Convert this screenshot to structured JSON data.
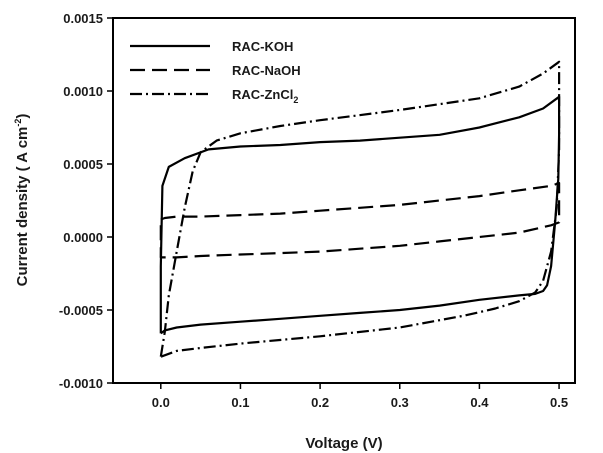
{
  "chart_data": {
    "type": "line",
    "xlabel": "Voltage (V)",
    "ylabel_prefix": "Current density ( A cm",
    "ylabel_sup": "-2",
    "ylabel_suffix": ")",
    "xlim": [
      -0.06,
      0.52
    ],
    "ylim": [
      -0.001,
      0.0015
    ],
    "x_ticks": [
      0.0,
      0.1,
      0.2,
      0.3,
      0.4,
      0.5
    ],
    "x_tick_labels": [
      "0.0",
      "0.1",
      "0.2",
      "0.3",
      "0.4",
      "0.5"
    ],
    "y_ticks": [
      -0.001,
      -0.0005,
      0.0,
      0.0005,
      0.001,
      0.0015
    ],
    "y_tick_labels": [
      "-0.0010",
      "-0.0005",
      "0.0000",
      "0.0005",
      "0.0010",
      "0.0015"
    ],
    "grid": false,
    "legend_position": "top-left",
    "series": [
      {
        "name": "RAC-KOH",
        "name_main": "RAC-KOH",
        "name_sub": "",
        "style": "solid",
        "x": [
          0.0,
          0.0,
          0.002,
          0.01,
          0.03,
          0.06,
          0.1,
          0.15,
          0.2,
          0.25,
          0.3,
          0.35,
          0.4,
          0.45,
          0.48,
          0.5,
          0.5,
          0.499,
          0.495,
          0.49,
          0.485,
          0.48,
          0.47,
          0.45,
          0.4,
          0.35,
          0.3,
          0.25,
          0.2,
          0.15,
          0.1,
          0.05,
          0.02,
          0.005,
          0.0
        ],
        "y": [
          -0.00066,
          -0.0002,
          0.00035,
          0.00048,
          0.00054,
          0.0006,
          0.00062,
          0.00063,
          0.00065,
          0.00066,
          0.00068,
          0.0007,
          0.00075,
          0.00082,
          0.00088,
          0.00096,
          0.0007,
          0.0004,
          0.0001,
          -0.0002,
          -0.00033,
          -0.00037,
          -0.00039,
          -0.0004,
          -0.00043,
          -0.00047,
          -0.0005,
          -0.00052,
          -0.00054,
          -0.00056,
          -0.00058,
          -0.0006,
          -0.00062,
          -0.00064,
          -0.00066
        ]
      },
      {
        "name": "RAC-NaOH",
        "name_main": "RAC-NaOH",
        "name_sub": "",
        "style": "dashed",
        "x": [
          0.0,
          0.005,
          0.02,
          0.05,
          0.1,
          0.15,
          0.2,
          0.25,
          0.3,
          0.35,
          0.4,
          0.45,
          0.49,
          0.5,
          0.5,
          0.49,
          0.45,
          0.4,
          0.35,
          0.3,
          0.25,
          0.2,
          0.15,
          0.1,
          0.05,
          0.02,
          0.0,
          0.0
        ],
        "y": [
          0.00012,
          0.00013,
          0.00014,
          0.00014,
          0.00015,
          0.00016,
          0.00018,
          0.0002,
          0.00022,
          0.00025,
          0.00028,
          0.00032,
          0.00035,
          0.00037,
          0.0001,
          8e-05,
          3e-05,
          0.0,
          -3e-05,
          -6e-05,
          -8e-05,
          -0.0001,
          -0.00011,
          -0.00012,
          -0.00013,
          -0.00014,
          -0.00014,
          0.00012
        ]
      },
      {
        "name": "RAC-ZnCl2",
        "name_main": "RAC-ZnCl",
        "name_sub": "2",
        "style": "dashdot",
        "x": [
          0.0,
          0.005,
          0.01,
          0.02,
          0.03,
          0.04,
          0.05,
          0.07,
          0.1,
          0.15,
          0.2,
          0.3,
          0.4,
          0.45,
          0.48,
          0.5,
          0.5,
          0.497,
          0.49,
          0.48,
          0.47,
          0.45,
          0.42,
          0.38,
          0.3,
          0.2,
          0.1,
          0.05,
          0.02,
          0.0
        ],
        "y": [
          -0.00082,
          -0.00065,
          -0.0004,
          -0.0001,
          0.0002,
          0.00045,
          0.00058,
          0.00066,
          0.00071,
          0.00076,
          0.0008,
          0.00087,
          0.00095,
          0.00103,
          0.00112,
          0.0012,
          0.0006,
          0.0002,
          -0.0001,
          -0.0003,
          -0.00038,
          -0.00044,
          -0.00049,
          -0.00054,
          -0.00062,
          -0.00068,
          -0.00073,
          -0.00076,
          -0.00078,
          -0.00082
        ]
      }
    ]
  }
}
